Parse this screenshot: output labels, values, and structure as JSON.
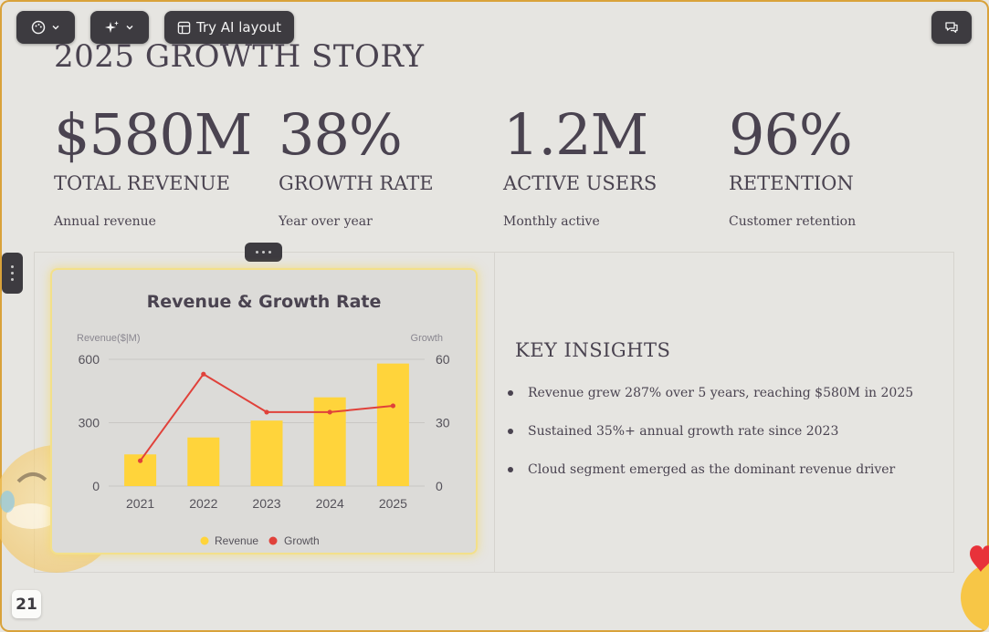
{
  "toolbar": {
    "palette_icon": "palette-icon",
    "magic_icon": "sparkles-icon",
    "ai_layout_label": "Try AI layout",
    "comment_icon": "comment-icon"
  },
  "slide": {
    "title": "2025 GROWTH STORY",
    "metrics": [
      {
        "value": "$580M",
        "label": "TOTAL REVENUE",
        "desc": "Annual revenue"
      },
      {
        "value": "38%",
        "label": "GROWTH RATE",
        "desc": "Year over year"
      },
      {
        "value": "1.2M",
        "label": "ACTIVE USERS",
        "desc": "Monthly active"
      },
      {
        "value": "96%",
        "label": "RETENTION",
        "desc": "Customer retention"
      }
    ],
    "insights": {
      "title": "KEY INSIGHTS",
      "items": [
        "Revenue grew 287% over 5 years, reaching $580M in 2025",
        "Sustained 35%+ annual growth rate since 2023",
        "Cloud segment emerged as the dominant revenue driver"
      ]
    },
    "page_number": "21"
  },
  "colors": {
    "revenue": "#ffd43b",
    "growth": "#e0413a",
    "text": "#4a4350",
    "toolbar": "#3d3b40"
  },
  "chart_data": {
    "type": "bar",
    "title": "Revenue & Growth Rate",
    "categories": [
      "2021",
      "2022",
      "2023",
      "2024",
      "2025"
    ],
    "y_left_label": "Revenue($|M)",
    "y_right_label": "Growth",
    "y_left_ticks": [
      "0",
      "300",
      "600"
    ],
    "y_right_ticks": [
      "0",
      "30",
      "60"
    ],
    "ylim": [
      0,
      600
    ],
    "y2lim": [
      0,
      60
    ],
    "grid": true,
    "legend_position": "bottom",
    "series": [
      {
        "name": "Revenue",
        "type": "bar",
        "axis": "left",
        "values": [
          150,
          230,
          310,
          420,
          580
        ]
      },
      {
        "name": "Growth",
        "type": "line",
        "axis": "right",
        "values": [
          12,
          53,
          35,
          35,
          38
        ]
      }
    ]
  }
}
